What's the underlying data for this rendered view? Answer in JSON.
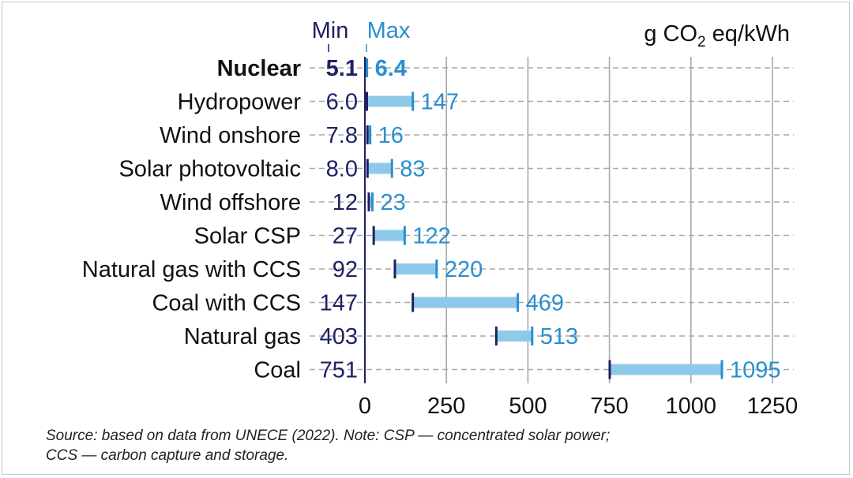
{
  "chart_data": {
    "type": "range-bar",
    "title": "",
    "unit_label": {
      "prefix": "g CO",
      "subscript": "2",
      "suffix": " eq/kWh"
    },
    "legend": {
      "min": "Min",
      "max": "Max"
    },
    "xlim": [
      0,
      1250
    ],
    "xticks": [
      0,
      250,
      500,
      750,
      1000,
      1250
    ],
    "xtick_labels": [
      "0",
      "250",
      "500",
      "750",
      "1000",
      "1250"
    ],
    "grid": true,
    "categories": [
      {
        "name": "Nuclear",
        "min": 5.1,
        "max": 6.4,
        "min_label": "5.1",
        "max_label": "6.4",
        "highlight": true
      },
      {
        "name": "Hydropower",
        "min": 6.0,
        "max": 147,
        "min_label": "6.0",
        "max_label": "147",
        "highlight": false
      },
      {
        "name": "Wind onshore",
        "min": 7.8,
        "max": 16,
        "min_label": "7.8",
        "max_label": "16",
        "highlight": false
      },
      {
        "name": "Solar photovoltaic",
        "min": 8.0,
        "max": 83,
        "min_label": "8.0",
        "max_label": "83",
        "highlight": false
      },
      {
        "name": "Wind offshore",
        "min": 12,
        "max": 23,
        "min_label": "12",
        "max_label": "23",
        "highlight": false
      },
      {
        "name": "Solar CSP",
        "min": 27,
        "max": 122,
        "min_label": "27",
        "max_label": "122",
        "highlight": false
      },
      {
        "name": "Natural gas with CCS",
        "min": 92,
        "max": 220,
        "min_label": "92",
        "max_label": "220",
        "highlight": false
      },
      {
        "name": "Coal with CCS",
        "min": 147,
        "max": 469,
        "min_label": "147",
        "max_label": "469",
        "highlight": false
      },
      {
        "name": "Natural gas",
        "min": 403,
        "max": 513,
        "min_label": "403",
        "max_label": "513",
        "highlight": false
      },
      {
        "name": "Coal",
        "min": 751,
        "max": 1095,
        "min_label": "751",
        "max_label": "1095",
        "highlight": false
      }
    ],
    "colors": {
      "min": "#1f2163",
      "max": "#2a8fcf",
      "bar": "#8fc9ea",
      "category_text": "#111111",
      "grid": "#a8a8a8",
      "axis": "#1f2163"
    }
  },
  "footnote": {
    "line1": "Source: based on data from UNECE (2022). Note: CSP — concentrated solar power;",
    "line2": "CCS — carbon capture and storage."
  }
}
